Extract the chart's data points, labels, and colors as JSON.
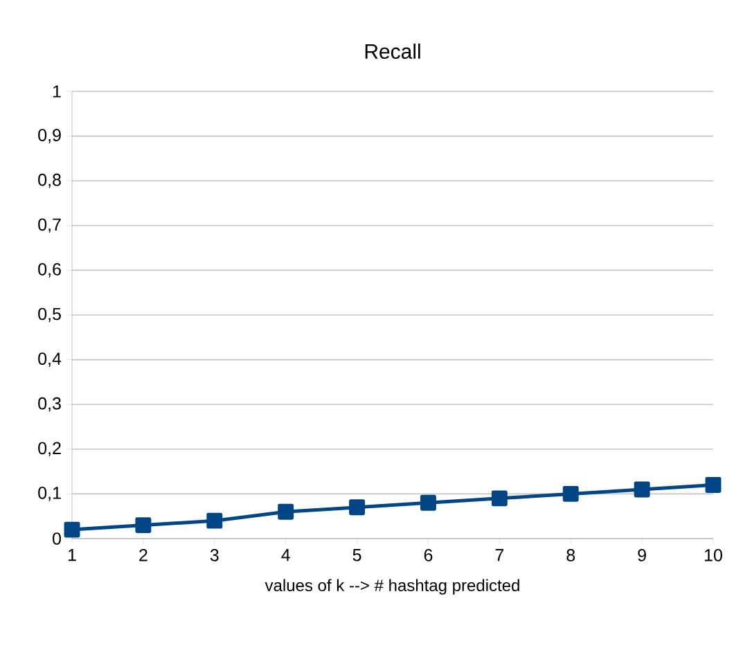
{
  "chart_data": {
    "type": "line",
    "title": "Recall",
    "xlabel": "values of k --> # hashtag predicted",
    "x": [
      1,
      2,
      3,
      4,
      5,
      6,
      7,
      8,
      9,
      10
    ],
    "series": [
      {
        "color": "#004586",
        "values": [
          0.02,
          0.03,
          0.04,
          0.06,
          0.07,
          0.08,
          0.09,
          0.1,
          0.11,
          0.12
        ]
      }
    ],
    "xlim": [
      1,
      10
    ],
    "xticks": [
      1,
      2,
      3,
      4,
      5,
      6,
      7,
      8,
      9,
      10
    ],
    "ylim": [
      0,
      1
    ],
    "yticks": [
      0,
      {
        "value": 0.1,
        "label": "0,1"
      },
      {
        "value": 0.2,
        "label": "0,2"
      },
      {
        "value": 0.3,
        "label": "0,3"
      },
      {
        "value": 0.4,
        "label": "0,4"
      },
      {
        "value": 0.5,
        "label": "0,5"
      },
      {
        "value": 0.6,
        "label": "0,6"
      },
      {
        "value": 0.7,
        "label": "0,7"
      },
      {
        "value": 0.8,
        "label": "0,8"
      },
      {
        "value": 0.9,
        "label": "0,9"
      },
      1
    ],
    "grid": "y",
    "marker": "square",
    "line_style": "solid"
  }
}
